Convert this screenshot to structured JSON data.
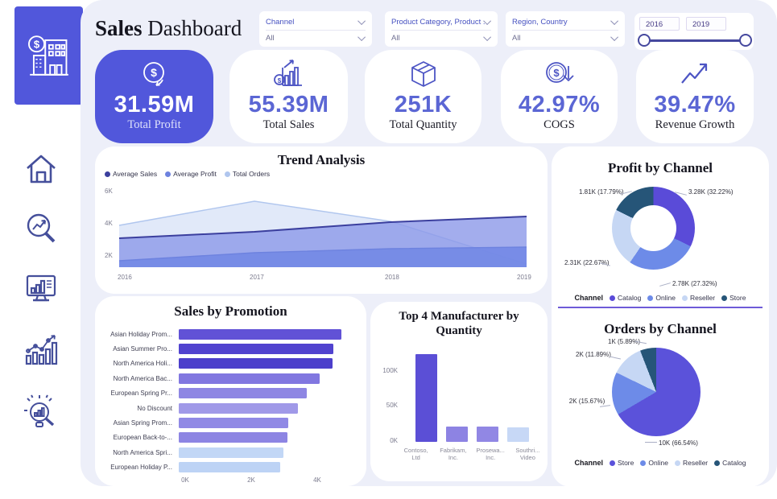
{
  "header": {
    "title_bold": "Sales",
    "title_rest": " Dashboard"
  },
  "filters": [
    {
      "label": "Channel",
      "value": "All"
    },
    {
      "label": "Product Category, Product ...",
      "value": "All"
    },
    {
      "label": "Region, Country",
      "value": "All"
    }
  ],
  "year_slider": {
    "start": "2016",
    "end": "2019"
  },
  "kpis": [
    {
      "icon": "profit-dollar-icon",
      "value": "31.59M",
      "label": "Total Profit"
    },
    {
      "icon": "sales-bars-icon",
      "value": "55.39M",
      "label": "Total Sales"
    },
    {
      "icon": "package-icon",
      "value": "251K",
      "label": "Total Quantity"
    },
    {
      "icon": "cogs-dollar-down-icon",
      "value": "42.97%",
      "label": "COGS"
    },
    {
      "icon": "revenue-growth-icon",
      "value": "39.47%",
      "label": "Revenue Growth"
    }
  ],
  "colors": {
    "primary": "#5157db",
    "panel_bg": "#edeff9",
    "divider": "#6e5bd8"
  },
  "chart_data": [
    {
      "id": "trend",
      "type": "area",
      "title": "Trend Analysis",
      "x": [
        "2016",
        "2017",
        "2018",
        "2019"
      ],
      "series": [
        {
          "name": "Average Sales",
          "values": [
            3100,
            3500,
            4100,
            4450
          ],
          "stroke": "#3b3f9e",
          "fill": "#8c99e8",
          "fill_opacity": 0.8
        },
        {
          "name": "Average Profit",
          "values": [
            1700,
            2200,
            2450,
            2550
          ],
          "stroke": "#6d82df",
          "fill": "#7388e6",
          "fill_opacity": 0.9
        },
        {
          "name": "Total Orders",
          "values": [
            3900,
            5400,
            4150,
            1500
          ],
          "stroke": "#b0c6ee",
          "fill": "#d9e4f8",
          "fill_opacity": 0.8
        }
      ],
      "yticks": [
        "6K",
        "4K",
        "2K"
      ],
      "ylim": [
        1300,
        6300
      ],
      "legend_position": "top-left",
      "grid": false
    },
    {
      "id": "profit_by_channel",
      "type": "donut",
      "title": "Profit by Channel",
      "legend_title": "Channel",
      "slices": [
        {
          "label": "Catalog",
          "value": 3280,
          "pct": 32.22,
          "callout": "3.28K (32.22%)",
          "color": "#5a4bd8"
        },
        {
          "label": "Online",
          "value": 2780,
          "pct": 27.32,
          "callout": "2.78K (27.32%)",
          "color": "#6d8be8"
        },
        {
          "label": "Reseller",
          "value": 2310,
          "pct": 22.67,
          "callout": "2.31K (22.67%)",
          "color": "#c6d7f4"
        },
        {
          "label": "Store",
          "value": 1810,
          "pct": 17.79,
          "callout": "1.81K (17.79%)",
          "color": "#265578"
        }
      ]
    },
    {
      "id": "sales_by_promotion",
      "type": "bar-horizontal",
      "title": "Sales by Promotion",
      "categories": [
        "Asian Holiday Prom...",
        "Asian Summer Pro...",
        "North America Holi...",
        "North America Bac...",
        "European Spring Pr...",
        "No Discount",
        "Asian Spring Prom...",
        "European Back-to-...",
        "North America Spri...",
        "European Holiday P..."
      ],
      "values": [
        4790,
        4560,
        4540,
        4150,
        3780,
        3520,
        3230,
        3200,
        3090,
        3000
      ],
      "colors": [
        "#6152d6",
        "#5143cf",
        "#4c3fcb",
        "#8177e0",
        "#8e86e3",
        "#a099e8",
        "#9089e5",
        "#8d85e3",
        "#c2d7f6",
        "#bdd3f5"
      ],
      "xticks": [
        "0K",
        "2K",
        "4K"
      ],
      "xlim": [
        0,
        5200
      ]
    },
    {
      "id": "top_manufacturers",
      "type": "bar",
      "title": "Top 4 Manufacturer by Quantity",
      "categories": [
        "Contoso, Ltd",
        "Fabrikam, Inc.",
        "Prosewa... Inc.",
        "Southri... Video"
      ],
      "values": [
        125000,
        22000,
        22000,
        21000
      ],
      "colors": [
        "#5b4fd6",
        "#8d83e3",
        "#9187e4",
        "#c7d8f6"
      ],
      "yticks": [
        "0K",
        "50K",
        "100K"
      ],
      "ylim": [
        0,
        150000
      ]
    },
    {
      "id": "orders_by_channel",
      "type": "pie",
      "title": "Orders by Channel",
      "legend_title": "Channel",
      "slices": [
        {
          "label": "Store",
          "value": 10000,
          "pct": 66.54,
          "callout": "10K (66.54%)",
          "color": "#5b52da"
        },
        {
          "label": "Online",
          "value": 2000,
          "pct": 15.67,
          "callout": "2K (15.67%)",
          "color": "#6d8be8"
        },
        {
          "label": "Reseller",
          "value": 2000,
          "pct": 11.89,
          "callout": "2K (11.89%)",
          "color": "#c6d7f4"
        },
        {
          "label": "Catalog",
          "value": 1000,
          "pct": 5.89,
          "callout": "1K (5.89%)",
          "color": "#265578"
        }
      ]
    }
  ]
}
